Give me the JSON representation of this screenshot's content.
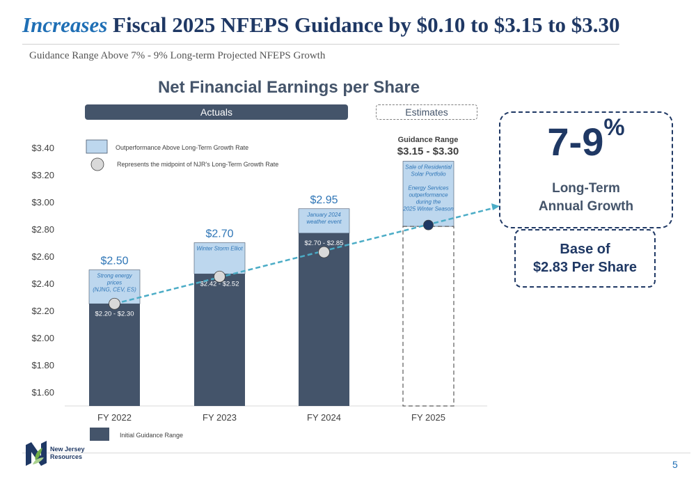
{
  "header": {
    "title_em": "Increases",
    "title_rest": " Fiscal 2025 NFEPS Guidance by $0.10 to  $3.15 to $3.30",
    "subtitle": "Guidance Range Above 7% - 9% Long-term Projected NFEPS Growth"
  },
  "chart_header": {
    "title": "Net Financial Earnings per Share",
    "actuals": "Actuals",
    "estimates": "Estimates"
  },
  "legend": {
    "outperformance": "Outperformance Above Long-Term Growth Rate",
    "midpoint": "Represents the midpoint of NJR's Long-Term Growth Rate",
    "initial": "Initial Guidance Range"
  },
  "guidance": {
    "heading": "Guidance Range",
    "range": "$3.15 - $3.30"
  },
  "growth": {
    "big": "7-9",
    "pct": "%",
    "line1": "Long-Term",
    "line2": "Annual Growth"
  },
  "base": {
    "line1": "Base of",
    "line2": "$2.83 Per Share"
  },
  "footer": {
    "logo_text": "New Jersey\nResources",
    "page": "5"
  },
  "colors": {
    "bar": "#44546a",
    "outperformance": "#bdd7ee",
    "trend": "#4bacc6",
    "midpoint": "#d9d9d9",
    "navy": "#1f3864"
  },
  "chart_data": {
    "type": "bar",
    "ylim": [
      1.6,
      3.4
    ],
    "ytick_values": [
      1.6,
      1.8,
      2.0,
      2.2,
      2.4,
      2.6,
      2.8,
      3.0,
      3.2,
      3.4
    ],
    "yticks": [
      "$1.60",
      "$1.80",
      "$2.00",
      "$2.20",
      "$2.40",
      "$2.60",
      "$2.80",
      "$3.00",
      "$3.20",
      "$3.40"
    ],
    "categories": [
      "FY 2022",
      "FY 2023",
      "FY 2024",
      "FY 2025"
    ],
    "bars": [
      {
        "category": "FY 2022",
        "base": 2.25,
        "top": 2.5,
        "value_label": "$2.50",
        "range_label": "$2.20 - $2.30",
        "midpoint": 2.25,
        "annotation": [
          "Strong energy",
          "prices",
          "(NJNG, CEV, ES)"
        ],
        "estimate": false
      },
      {
        "category": "FY 2023",
        "base": 2.47,
        "top": 2.7,
        "value_label": "$2.70",
        "range_label": "$2.42 - $2.52",
        "midpoint": 2.45,
        "annotation": [
          "Winter Storm Elliot"
        ],
        "estimate": false
      },
      {
        "category": "FY 2024",
        "base": 2.77,
        "top": 2.95,
        "value_label": "$2.95",
        "range_label": "$2.70 - $2.85",
        "midpoint": 2.63,
        "annotation": [
          "January 2024",
          "weather event"
        ],
        "estimate": false
      },
      {
        "category": "FY 2025",
        "base": 2.82,
        "top": 3.3,
        "value_label": "",
        "range_label": "",
        "midpoint": 2.83,
        "annotation": [
          "Sale of Residential",
          "Solar Portfolio",
          "",
          "Energy Services",
          "outperformance",
          "during the",
          "2025 Winter Season"
        ],
        "estimate": true
      }
    ],
    "trend_line": {
      "from": [
        "FY 2022",
        2.25
      ],
      "to_label": "7-9% Long-Term Annual Growth"
    }
  }
}
